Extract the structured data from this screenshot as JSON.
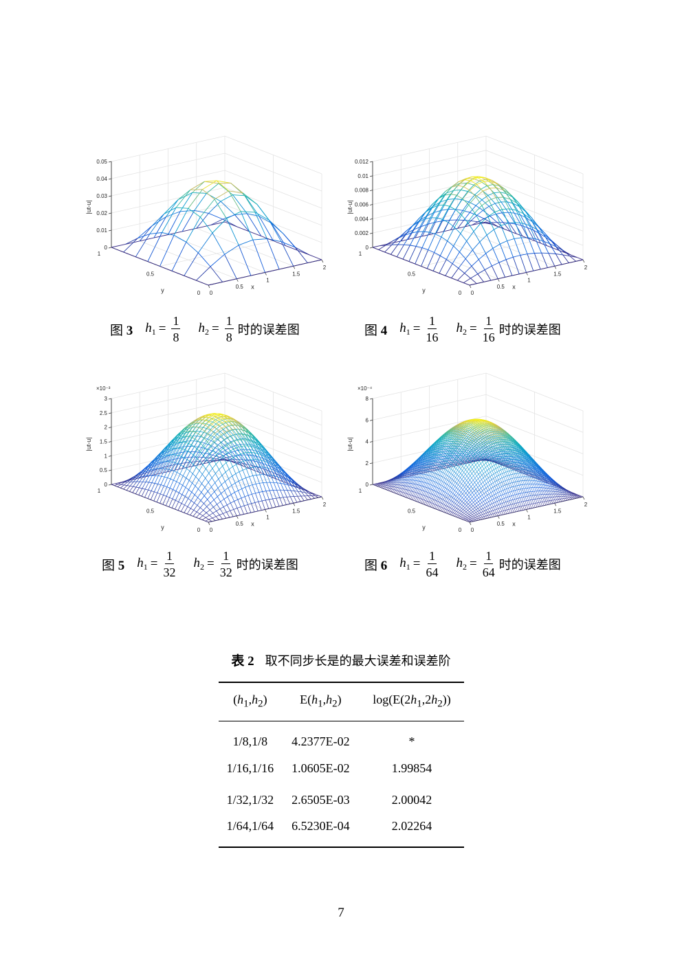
{
  "figures": [
    {
      "number": "3",
      "label": "图",
      "h1_num": "1",
      "h1_den": "8",
      "h2_num": "1",
      "h2_den": "8",
      "suffix": "时的误差图",
      "chart_data": {
        "type": "surface3d",
        "zlabel": "|ut-u|",
        "xlabel": "x",
        "ylabel": "y",
        "xticks": [
          "0",
          "0.5",
          "1",
          "1.5",
          "2"
        ],
        "yticks": [
          "0",
          "0.5",
          "1"
        ],
        "zticks": [
          "0",
          "0.01",
          "0.02",
          "0.03",
          "0.04",
          "0.05"
        ],
        "zlim": [
          0,
          0.05
        ],
        "exponent": "",
        "grid": 8,
        "peak": 0.0424
      }
    },
    {
      "number": "4",
      "label": "图",
      "h1_num": "1",
      "h1_den": "16",
      "h2_num": "1",
      "h2_den": "16",
      "suffix": "时的误差图",
      "chart_data": {
        "type": "surface3d",
        "zlabel": "|ut-u|",
        "xlabel": "x",
        "ylabel": "y",
        "xticks": [
          "0",
          "0.5",
          "1",
          "1.5",
          "2"
        ],
        "yticks": [
          "0",
          "0.5",
          "1"
        ],
        "zticks": [
          "0",
          "0.002",
          "0.004",
          "0.006",
          "0.008",
          "0.01",
          "0.012"
        ],
        "zlim": [
          0,
          0.012
        ],
        "exponent": "",
        "grid": 16,
        "peak": 0.0106
      }
    },
    {
      "number": "5",
      "label": "图",
      "h1_num": "1",
      "h1_den": "32",
      "h2_num": "1",
      "h2_den": "32",
      "suffix": "时的误差图",
      "chart_data": {
        "type": "surface3d",
        "zlabel": "|ut-u|",
        "xlabel": "x",
        "ylabel": "y",
        "xticks": [
          "0",
          "0.5",
          "1",
          "1.5",
          "2"
        ],
        "yticks": [
          "0",
          "0.5",
          "1"
        ],
        "zticks": [
          "0",
          "0.5",
          "1",
          "1.5",
          "2",
          "2.5",
          "3"
        ],
        "zlim": [
          0,
          3
        ],
        "exponent": "×10⁻³",
        "grid": 32,
        "peak": 2.65
      }
    },
    {
      "number": "6",
      "label": "图",
      "h1_num": "1",
      "h1_den": "64",
      "h2_num": "1",
      "h2_den": "64",
      "suffix": "时的误差图",
      "chart_data": {
        "type": "surface3d",
        "zlabel": "|ut-u|",
        "xlabel": "x",
        "ylabel": "y",
        "xticks": [
          "0",
          "0.5",
          "1",
          "1.5",
          "2"
        ],
        "yticks": [
          "0",
          "0.5",
          "1"
        ],
        "zticks": [
          "0",
          "2",
          "4",
          "6",
          "8"
        ],
        "zlim": [
          0,
          8
        ],
        "exponent": "×10⁻⁴",
        "grid": 64,
        "peak": 6.523
      }
    }
  ],
  "table": {
    "number": "表 2",
    "caption": "取不同步长是的最大误差和误差阶",
    "headers": [
      "(h1,h2)",
      "E(h1,h2)",
      "log(E(2h1,2h2))"
    ],
    "rows": [
      [
        "1/8,1/8",
        "4.2377E-02",
        "*"
      ],
      [
        "1/16,1/16",
        "1.0605E-02",
        "1.99854"
      ],
      [
        "1/32,1/32",
        "2.6505E-03",
        "2.00042"
      ],
      [
        "1/64,1/64",
        "6.5230E-04",
        "2.02264"
      ]
    ]
  },
  "page_number": "7"
}
